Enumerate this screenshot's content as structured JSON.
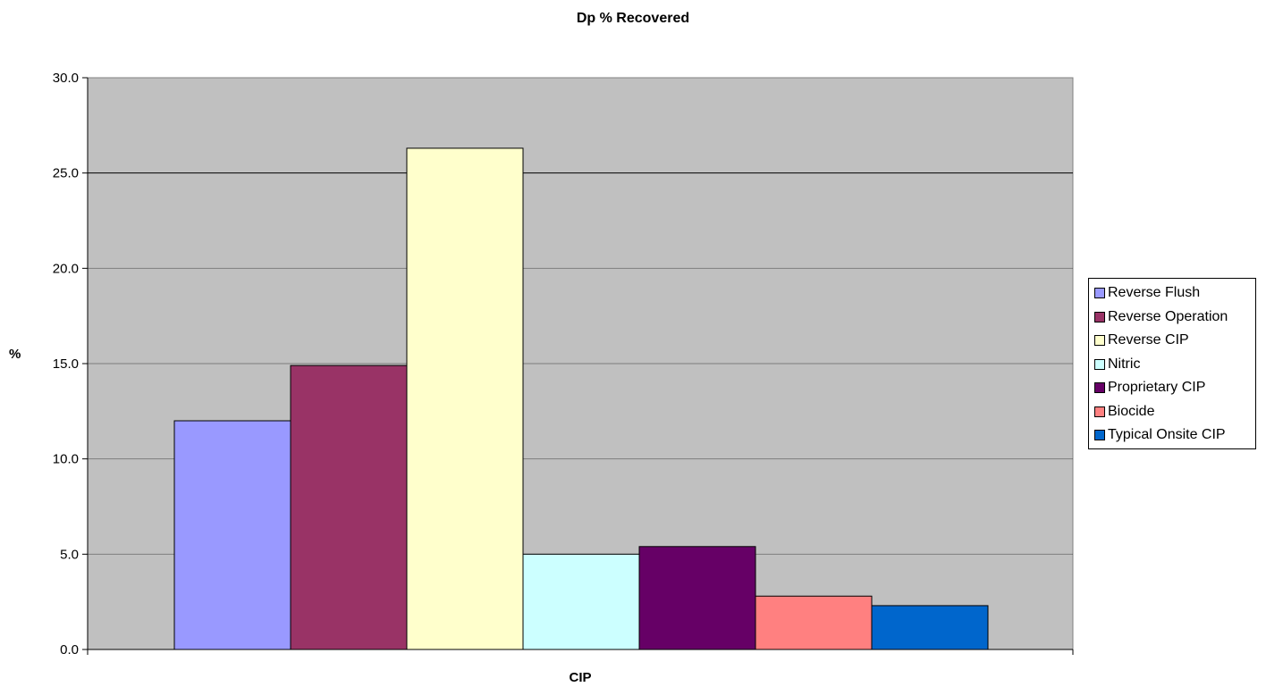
{
  "chart_data": {
    "type": "bar",
    "title": "Dp % Recovered",
    "xlabel": "CIP",
    "ylabel": "%",
    "categories": [
      "CIP"
    ],
    "ylim": [
      0,
      30
    ],
    "yticks": [
      "0.0",
      "5.0",
      "10.0",
      "15.0",
      "20.0",
      "25.0",
      "30.0"
    ],
    "grid": true,
    "legend_position": "right",
    "plot_background": "#c0c0c0",
    "series": [
      {
        "name": "Reverse Flush",
        "values": [
          12.0
        ],
        "color": "#9999ff"
      },
      {
        "name": "Reverse Operation",
        "values": [
          14.9
        ],
        "color": "#993366"
      },
      {
        "name": "Reverse CIP",
        "values": [
          26.3
        ],
        "color": "#ffffcc"
      },
      {
        "name": "Nitric",
        "values": [
          5.0
        ],
        "color": "#ccffff"
      },
      {
        "name": "Proprietary CIP",
        "values": [
          5.4
        ],
        "color": "#660066"
      },
      {
        "name": "Biocide",
        "values": [
          2.8
        ],
        "color": "#ff8080"
      },
      {
        "name": "Typical Onsite CIP",
        "values": [
          2.3
        ],
        "color": "#0066cc"
      }
    ]
  }
}
